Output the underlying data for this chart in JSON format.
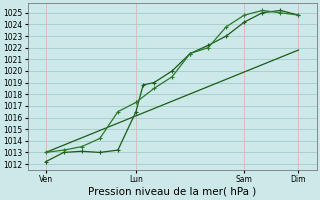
{
  "xlabel": "Pression niveau de la mer( hPa )",
  "background_color": "#cce8e8",
  "grid_color_h": "#aacece",
  "grid_color_v": "#ddbbbb",
  "line_color_dark": "#1a5c1a",
  "line_color_med": "#2a7a2a",
  "ylim": [
    1011.5,
    1025.8
  ],
  "yticks": [
    1012,
    1013,
    1014,
    1015,
    1016,
    1017,
    1018,
    1019,
    1020,
    1021,
    1022,
    1023,
    1024,
    1025
  ],
  "xtick_labels": [
    "Ven",
    "Lun",
    "Sam",
    "Dim"
  ],
  "xtick_positions": [
    0.5,
    3.0,
    6.0,
    7.5
  ],
  "xlim": [
    0,
    8.0
  ],
  "line1_x": [
    0.5,
    1.0,
    1.5,
    2.0,
    2.5,
    3.0,
    3.2,
    3.5,
    4.0,
    4.5,
    5.0,
    5.5,
    6.0,
    6.5,
    7.0,
    7.5
  ],
  "line1_y": [
    1012.2,
    1013.0,
    1013.1,
    1013.0,
    1013.2,
    1016.5,
    1018.8,
    1019.0,
    1020.0,
    1021.5,
    1022.2,
    1023.0,
    1024.2,
    1025.0,
    1025.2,
    1024.8
  ],
  "line2_x": [
    0.5,
    1.0,
    1.5,
    2.0,
    2.5,
    3.0,
    3.5,
    4.0,
    4.5,
    5.0,
    5.5,
    6.0,
    6.5,
    7.0,
    7.5
  ],
  "line2_y": [
    1013.0,
    1013.2,
    1013.5,
    1014.2,
    1016.5,
    1017.3,
    1018.5,
    1019.5,
    1021.5,
    1022.0,
    1023.8,
    1024.8,
    1025.2,
    1025.0,
    1024.8
  ],
  "line3_x": [
    0.5,
    7.5
  ],
  "line3_y": [
    1013.0,
    1021.8
  ],
  "xlabel_fontsize": 7.5,
  "tick_fontsize": 5.5
}
